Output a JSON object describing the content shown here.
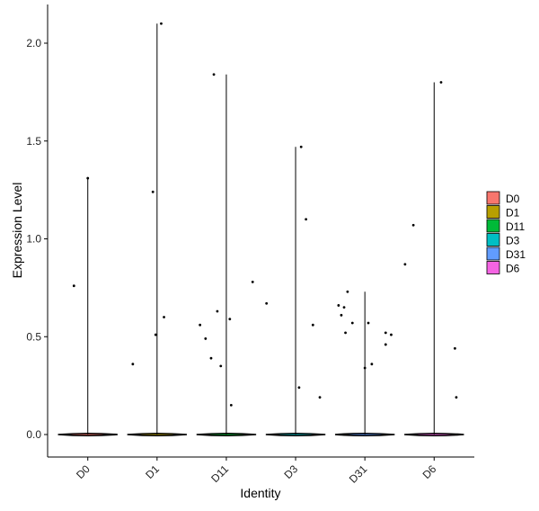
{
  "chart_data": {
    "type": "violin",
    "xlabel": "Identity",
    "ylabel": "Expression Level",
    "ylim": [
      -0.12,
      2.2
    ],
    "yticks": [
      0.0,
      0.5,
      1.0,
      1.5,
      2.0
    ],
    "ytick_labels": [
      "0.0",
      "0.5",
      "1.0",
      "1.5",
      "2.0"
    ],
    "categories": [
      "D0",
      "D1",
      "D11",
      "D3",
      "D31",
      "D6"
    ],
    "colors": [
      "#F8766D",
      "#B79F00",
      "#00BA38",
      "#00BFC4",
      "#619CFF",
      "#F564E3"
    ],
    "legend": {
      "position": "right",
      "entries": [
        "D0",
        "D1",
        "D11",
        "D3",
        "D31",
        "D6"
      ]
    },
    "grid": false,
    "groups": [
      {
        "name": "D0",
        "max": 1.31,
        "points": [
          [
            0.0,
            1.31
          ],
          [
            -0.2,
            0.76
          ]
        ]
      },
      {
        "name": "D1",
        "max": 2.1,
        "points": [
          [
            0.06,
            2.1
          ],
          [
            -0.06,
            1.24
          ],
          [
            0.1,
            0.6
          ],
          [
            -0.02,
            0.51
          ],
          [
            -0.35,
            0.36
          ]
        ]
      },
      {
        "name": "D11",
        "max": 1.84,
        "points": [
          [
            -0.18,
            1.84
          ],
          [
            0.38,
            0.78
          ],
          [
            -0.13,
            0.63
          ],
          [
            0.05,
            0.59
          ],
          [
            -0.38,
            0.56
          ],
          [
            -0.3,
            0.49
          ],
          [
            -0.22,
            0.39
          ],
          [
            -0.08,
            0.35
          ],
          [
            0.07,
            0.15
          ]
        ]
      },
      {
        "name": "D3",
        "max": 1.47,
        "points": [
          [
            0.08,
            1.47
          ],
          [
            0.15,
            1.1
          ],
          [
            -0.42,
            0.67
          ],
          [
            0.25,
            0.56
          ],
          [
            0.05,
            0.24
          ],
          [
            0.35,
            0.19
          ]
        ]
      },
      {
        "name": "D31",
        "max": 0.73,
        "points": [
          [
            -0.25,
            0.73
          ],
          [
            -0.38,
            0.66
          ],
          [
            -0.3,
            0.65
          ],
          [
            -0.34,
            0.61
          ],
          [
            -0.18,
            0.57
          ],
          [
            0.05,
            0.57
          ],
          [
            0.3,
            0.52
          ],
          [
            -0.28,
            0.52
          ],
          [
            0.38,
            0.51
          ],
          [
            0.3,
            0.46
          ],
          [
            0.1,
            0.36
          ],
          [
            0.0,
            0.34
          ]
        ]
      },
      {
        "name": "D6",
        "max": 1.8,
        "points": [
          [
            0.1,
            1.8
          ],
          [
            -0.3,
            1.07
          ],
          [
            -0.42,
            0.87
          ],
          [
            0.3,
            0.44
          ],
          [
            0.32,
            0.19
          ]
        ]
      }
    ]
  }
}
